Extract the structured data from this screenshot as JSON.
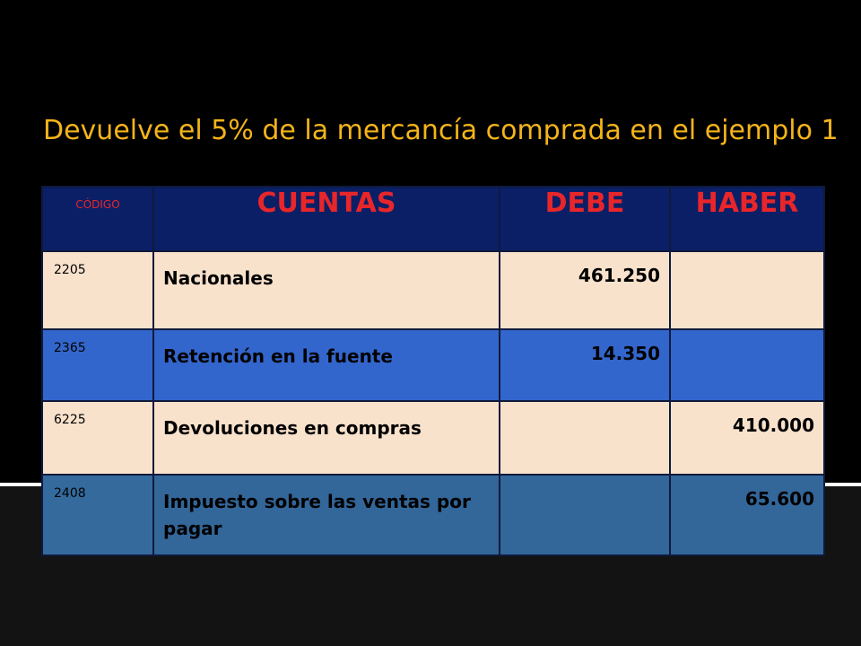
{
  "title": "Devuelve el 5% de la mercancía comprada en el ejemplo 1",
  "colors": {
    "background": "#000000",
    "title": "#f4b41a",
    "header_bg": "#0b1f66",
    "header_text": "#e8262a",
    "row_beige": "#f9e2cc",
    "row_blue": "#3366cc",
    "row_steel": "#336699"
  },
  "table": {
    "headers": {
      "code": "CÓDIGO",
      "accounts": "CUENTAS",
      "debit": "DEBE",
      "credit": "HABER"
    },
    "rows": [
      {
        "code": "2205",
        "account": "Nacionales",
        "debit": "461.250",
        "credit": ""
      },
      {
        "code": "2365",
        "account": "Retención en la fuente",
        "debit": "14.350",
        "credit": ""
      },
      {
        "code": "6225",
        "account": "Devoluciones en compras",
        "debit": "",
        "credit": "410.000"
      },
      {
        "code": "2408",
        "account": "Impuesto sobre las ventas por pagar",
        "debit": "",
        "credit": "65.600"
      }
    ]
  }
}
